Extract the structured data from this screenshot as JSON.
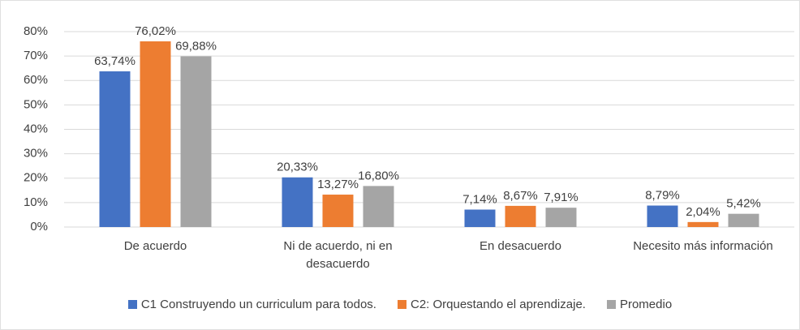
{
  "chart_data": {
    "type": "bar",
    "categories": [
      "De acuerdo",
      "Ni de acuerdo, ni en desacuerdo",
      "En desacuerdo",
      "Necesito más información"
    ],
    "series": [
      {
        "name": "C1 Construyendo un curriculum para todos.",
        "color": "#4472c4",
        "values": [
          63.74,
          20.33,
          7.14,
          8.79
        ],
        "value_labels": [
          "63,74%",
          "20,33%",
          "7,14%",
          "8,79%"
        ]
      },
      {
        "name": "C2: Orquestando el aprendizaje.",
        "color": "#ed7d31",
        "values": [
          76.02,
          13.27,
          8.67,
          2.04
        ],
        "value_labels": [
          "76,02%",
          "13,27%",
          "8,67%",
          "2,04%"
        ]
      },
      {
        "name": "Promedio",
        "color": "#a5a5a5",
        "values": [
          69.88,
          16.8,
          7.91,
          5.42
        ],
        "value_labels": [
          "69,88%",
          "16,80%",
          "7,91%",
          "5,42%"
        ]
      }
    ],
    "ylim": [
      0,
      80
    ],
    "yticks": [
      {
        "value": 0,
        "label": "0%"
      },
      {
        "value": 10,
        "label": "10%"
      },
      {
        "value": 20,
        "label": "20%"
      },
      {
        "value": 30,
        "label": "30%"
      },
      {
        "value": 40,
        "label": "40%"
      },
      {
        "value": 50,
        "label": "50%"
      },
      {
        "value": 60,
        "label": "60%"
      },
      {
        "value": 70,
        "label": "70%"
      },
      {
        "value": 80,
        "label": "80%"
      }
    ],
    "grid": true,
    "legend": "bottom"
  }
}
